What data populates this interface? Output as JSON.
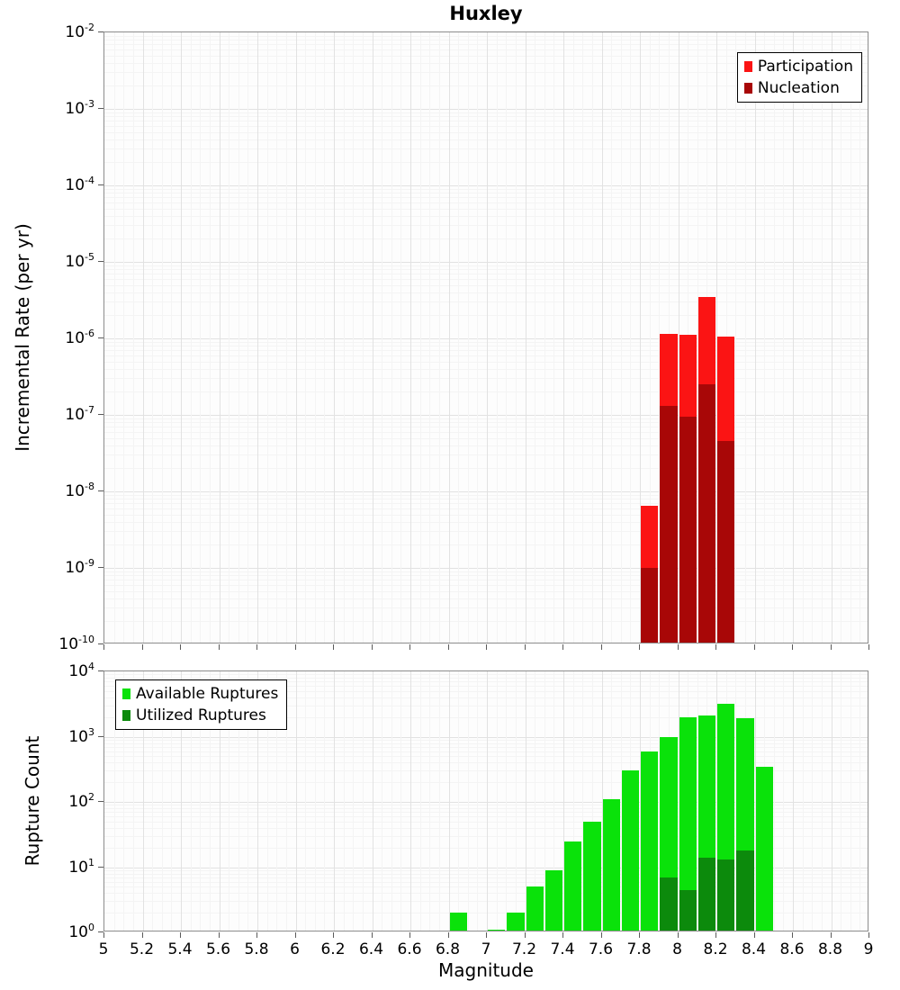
{
  "title": "Huxley",
  "chart_data": [
    {
      "type": "bar",
      "panel": "top",
      "title": "Huxley",
      "xlabel": "",
      "ylabel": "Incremental Rate (per yr)",
      "x_range": [
        5,
        9
      ],
      "x_tick_step": 0.2,
      "y_scale": "log",
      "ylim": [
        1e-10,
        0.01
      ],
      "ylim_exponents": [
        -10,
        -2
      ],
      "bin_width": 0.1,
      "grid": true,
      "legend_position": "top-right",
      "series": [
        {
          "name": "Participation",
          "color": "#fb1414",
          "x": [
            7.8,
            7.9,
            8.0,
            8.1,
            8.2
          ],
          "values": [
            6.5e-09,
            1.15e-06,
            1.1e-06,
            3.5e-06,
            1.05e-06
          ]
        },
        {
          "name": "Nucleation",
          "color": "#a80707",
          "x": [
            7.8,
            7.9,
            8.0,
            8.1,
            8.2
          ],
          "values": [
            1e-09,
            1.3e-07,
            9.5e-08,
            2.5e-07,
            4.5e-08
          ]
        }
      ]
    },
    {
      "type": "bar",
      "panel": "bottom",
      "title": "",
      "xlabel": "Magnitude",
      "ylabel": "Rupture Count",
      "x_range": [
        5,
        9
      ],
      "x_tick_step": 0.2,
      "y_scale": "log",
      "ylim": [
        1,
        10000
      ],
      "ylim_exponents": [
        0,
        4
      ],
      "bin_width": 0.1,
      "grid": true,
      "legend_position": "top-left",
      "series": [
        {
          "name": "Available Ruptures",
          "color": "#0ae20a",
          "x": [
            6.8,
            7.0,
            7.1,
            7.2,
            7.3,
            7.4,
            7.5,
            7.6,
            7.7,
            7.8,
            7.9,
            8.0,
            8.1,
            8.2,
            8.3,
            8.4
          ],
          "values": [
            2,
            1,
            2,
            5,
            9,
            25,
            50,
            110,
            300,
            600,
            1000,
            2000,
            2100,
            3200,
            1900,
            350
          ]
        },
        {
          "name": "Utilized Ruptures",
          "color": "#0c8a0c",
          "x": [
            7.9,
            8.0,
            8.1,
            8.2,
            8.3
          ],
          "values": [
            7,
            4.5,
            14,
            13,
            18
          ]
        }
      ]
    }
  ]
}
